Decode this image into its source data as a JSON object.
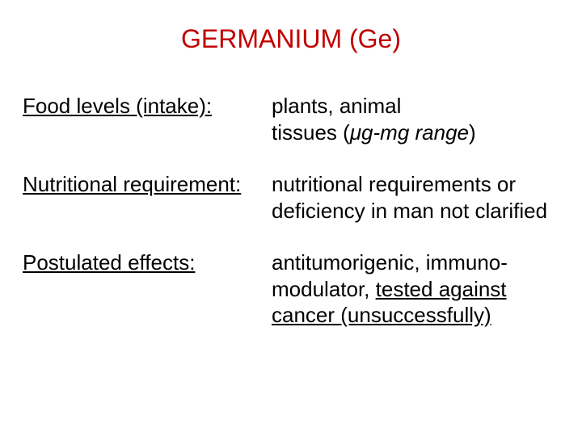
{
  "title_color": "#c00000",
  "text_color": "#000000",
  "background_color": "#ffffff",
  "font_family": "Arial, Helvetica, sans-serif",
  "title_fontsize": 32,
  "body_fontsize": 26,
  "title": "GERMANIUM (Ge)",
  "rows": [
    {
      "label": "Food levels (intake):",
      "plain1": "plants, animal tissues (",
      "italic": "μg-mg range",
      "plain2": ")"
    },
    {
      "label": "Nutritional requirement:",
      "plain1": "nutritional requirements or deficiency in man not clarified"
    },
    {
      "label": "Postulated effects:",
      "plain1": "antitumorigenic, immuno-modulator, ",
      "underlined": "tested against cancer (unsuccessfully)"
    }
  ]
}
